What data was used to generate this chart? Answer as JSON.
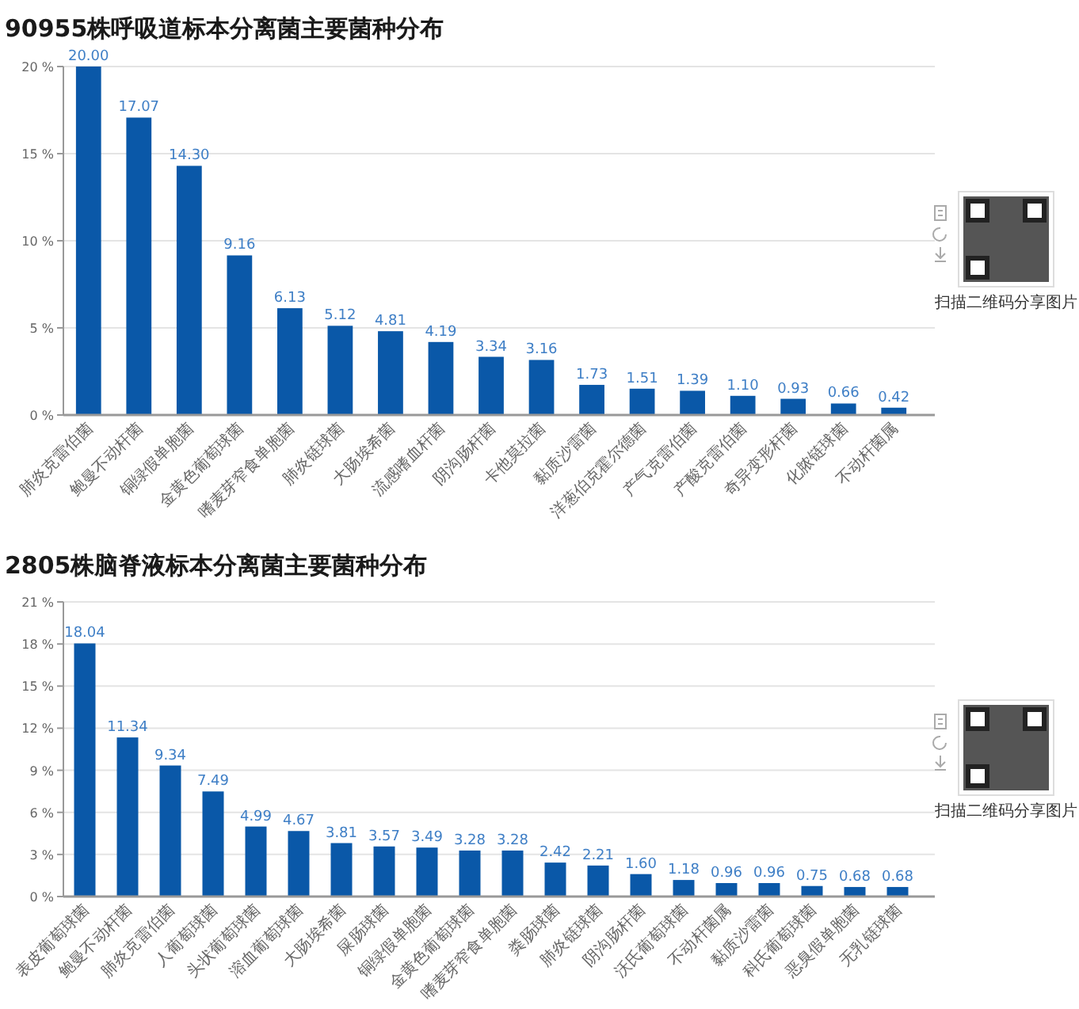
{
  "chart_data": [
    {
      "type": "bar",
      "title": "90955株呼吸道标本分离菌主要菌种分布",
      "categories": [
        "肺炎克雷伯菌",
        "鲍曼不动杆菌",
        "铜绿假单胞菌",
        "金黄色葡萄球菌",
        "嗜麦芽窄食单胞菌",
        "肺炎链球菌",
        "大肠埃希菌",
        "流感嗜血杆菌",
        "阴沟肠杆菌",
        "卡他莫拉菌",
        "黏质沙雷菌",
        "洋葱伯克霍尔德菌",
        "产气克雷伯菌",
        "产酸克雷伯菌",
        "奇异变形杆菌",
        "化脓链球菌",
        "不动杆菌属"
      ],
      "values": [
        20.0,
        17.07,
        14.3,
        9.16,
        6.13,
        5.12,
        4.81,
        4.19,
        3.34,
        3.16,
        1.73,
        1.51,
        1.39,
        1.1,
        0.93,
        0.66,
        0.42
      ],
      "value_labels": [
        "20.00",
        "17.07",
        "14.30",
        "9.16",
        "6.13",
        "5.12",
        "4.81",
        "4.19",
        "3.34",
        "3.16",
        "1.73",
        "1.51",
        "1.39",
        "1.10",
        "0.93",
        "0.66",
        "0.42"
      ],
      "color": "#0a58a8",
      "ylim": [
        0,
        20
      ],
      "yticks": [
        {
          "value": 0,
          "label": "0 %"
        },
        {
          "value": 5,
          "label": "5 %"
        },
        {
          "value": 10,
          "label": "10 %"
        },
        {
          "value": 15,
          "label": "15 %"
        },
        {
          "value": 20,
          "label": "20 %"
        }
      ],
      "grid": "y",
      "annotations": [
        "扫描二维码分享图片"
      ]
    },
    {
      "type": "bar",
      "title": "2805株脑脊液标本分离菌主要菌种分布",
      "categories": [
        "表皮葡萄球菌",
        "鲍曼不动杆菌",
        "肺炎克雷伯菌",
        "人葡萄球菌",
        "头状葡萄球菌",
        "溶血葡萄球菌",
        "大肠埃希菌",
        "屎肠球菌",
        "铜绿假单胞菌",
        "金黄色葡萄球菌",
        "嗜麦芽窄食单胞菌",
        "粪肠球菌",
        "肺炎链球菌",
        "阴沟肠杆菌",
        "沃氏葡萄球菌",
        "不动杆菌属",
        "黏质沙雷菌",
        "科氏葡萄球菌",
        "恶臭假单胞菌",
        "无乳链球菌"
      ],
      "values": [
        18.04,
        11.34,
        9.34,
        7.49,
        4.99,
        4.67,
        3.81,
        3.57,
        3.49,
        3.28,
        3.28,
        2.42,
        2.21,
        1.6,
        1.18,
        0.96,
        0.96,
        0.75,
        0.68,
        0.68
      ],
      "value_labels": [
        "18.04",
        "11.34",
        "9.34",
        "7.49",
        "4.99",
        "4.67",
        "3.81",
        "3.57",
        "3.49",
        "3.28",
        "3.28",
        "2.42",
        "2.21",
        "1.60",
        "1.18",
        "0.96",
        "0.96",
        "0.75",
        "0.68",
        "0.68"
      ],
      "color": "#0a58a8",
      "ylim": [
        0,
        21
      ],
      "yticks": [
        {
          "value": 0,
          "label": "0 %"
        },
        {
          "value": 3,
          "label": "3 %"
        },
        {
          "value": 6,
          "label": "6 %"
        },
        {
          "value": 9,
          "label": "9 %"
        },
        {
          "value": 12,
          "label": "12 %"
        },
        {
          "value": 15,
          "label": "15 %"
        },
        {
          "value": 18,
          "label": "18 %"
        },
        {
          "value": 21,
          "label": "21 %"
        }
      ],
      "grid": "y",
      "annotations": [
        "扫描二维码分享图片"
      ]
    }
  ]
}
